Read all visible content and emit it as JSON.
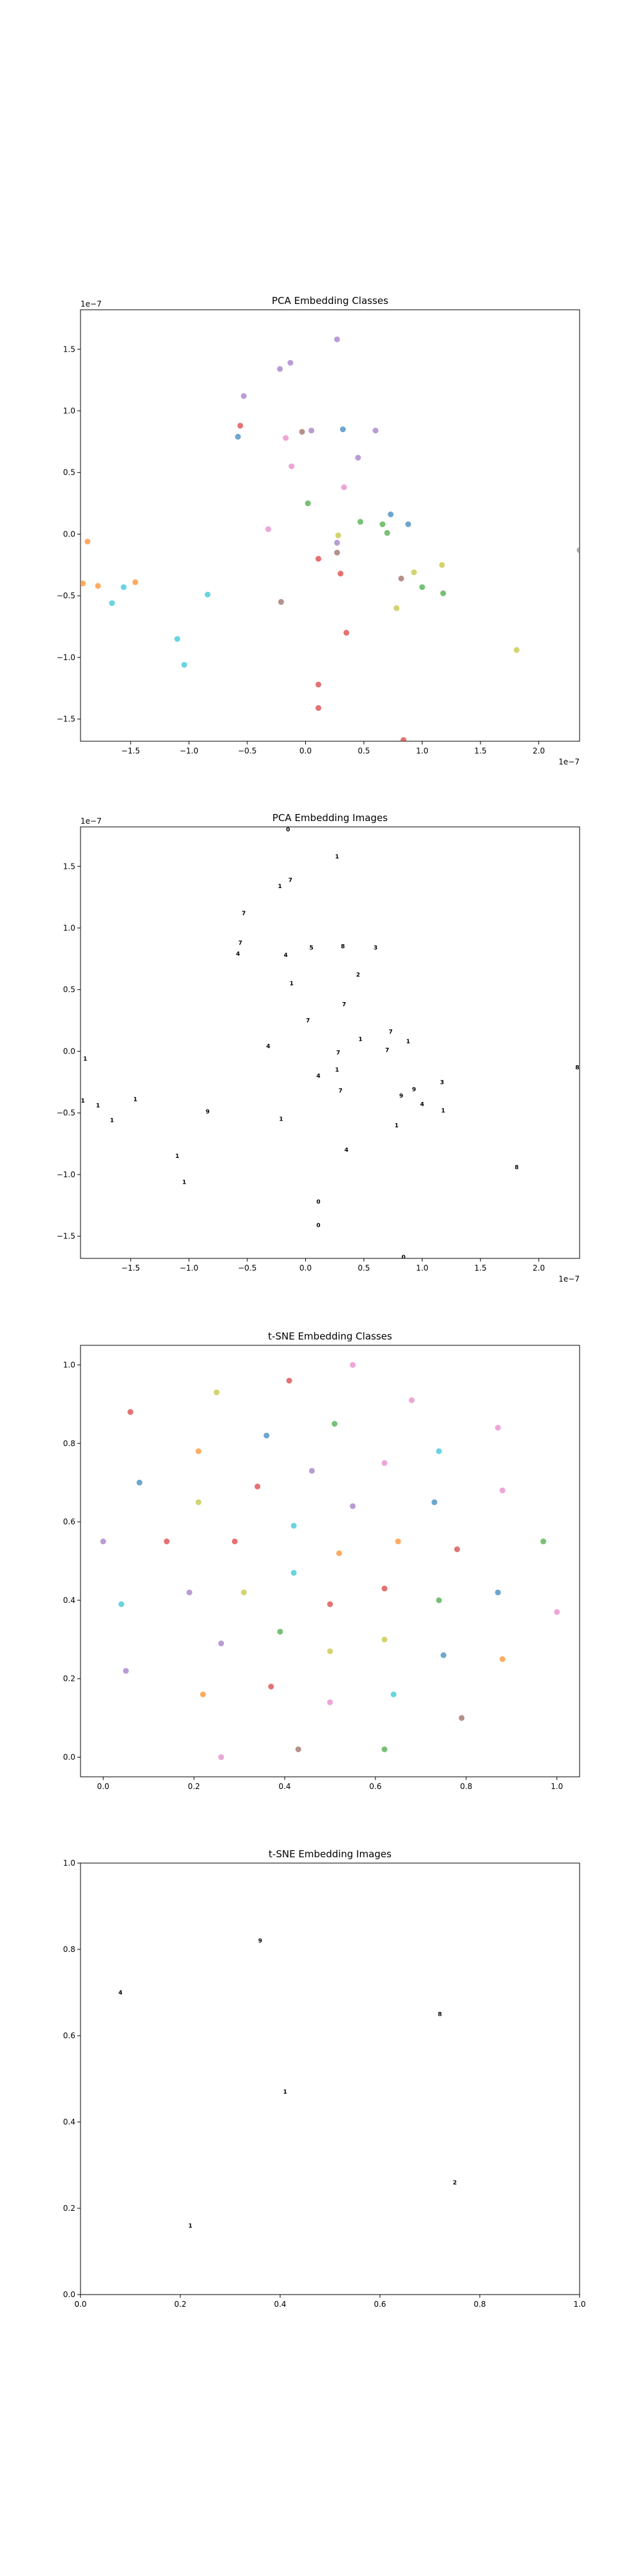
{
  "palette": [
    "#1f77b4",
    "#ff7f0e",
    "#2ca02c",
    "#d62728",
    "#9467bd",
    "#8c564b",
    "#e377c2",
    "#7f7f7f",
    "#bcbd22",
    "#17becf"
  ],
  "chart_data": [
    {
      "type": "scatter",
      "title": "PCA Embedding Classes",
      "xlim": [
        -1.93,
        2.35
      ],
      "ylim": [
        -1.68,
        1.82
      ],
      "xticks": [
        -1.5,
        -1.0,
        -0.5,
        0.0,
        0.5,
        1.0,
        1.5,
        2.0
      ],
      "yticks": [
        -1.5,
        -1.0,
        -0.5,
        0.0,
        0.5,
        1.0,
        1.5
      ],
      "xtick_labels": [
        "−1.5",
        "−1.0",
        "−0.5",
        "0.0",
        "0.5",
        "1.0",
        "1.5",
        "2.0"
      ],
      "ytick_labels": [
        "−1.5",
        "−1.0",
        "−0.5",
        "0.0",
        "0.5",
        "1.0",
        "1.5"
      ],
      "x_offset_label": "1e−7",
      "y_offset_label": "1e−7",
      "marker": "dot",
      "grid": false,
      "points": [
        {
          "x": 0.27,
          "y": 1.58,
          "c": 4
        },
        {
          "x": -0.13,
          "y": 1.39,
          "c": 4
        },
        {
          "x": -0.22,
          "y": 1.34,
          "c": 4
        },
        {
          "x": -0.53,
          "y": 1.12,
          "c": 4
        },
        {
          "x": -0.56,
          "y": 0.88,
          "c": 3
        },
        {
          "x": -0.58,
          "y": 0.79,
          "c": 0
        },
        {
          "x": -0.17,
          "y": 0.78,
          "c": 6
        },
        {
          "x": -0.03,
          "y": 0.83,
          "c": 5
        },
        {
          "x": 0.05,
          "y": 0.84,
          "c": 4
        },
        {
          "x": 0.32,
          "y": 0.85,
          "c": 0
        },
        {
          "x": 0.6,
          "y": 0.84,
          "c": 4
        },
        {
          "x": -0.12,
          "y": 0.55,
          "c": 6
        },
        {
          "x": 0.45,
          "y": 0.62,
          "c": 4
        },
        {
          "x": 0.02,
          "y": 0.25,
          "c": 2
        },
        {
          "x": 0.33,
          "y": 0.38,
          "c": 6
        },
        {
          "x": 0.47,
          "y": 0.1,
          "c": 2
        },
        {
          "x": 0.73,
          "y": 0.16,
          "c": 0
        },
        {
          "x": 0.88,
          "y": 0.08,
          "c": 0
        },
        {
          "x": 0.66,
          "y": 0.08,
          "c": 2
        },
        {
          "x": 0.7,
          "y": 0.01,
          "c": 2
        },
        {
          "x": 0.28,
          "y": -0.01,
          "c": 8
        },
        {
          "x": 0.27,
          "y": -0.07,
          "c": 4
        },
        {
          "x": -0.32,
          "y": 0.04,
          "c": 6
        },
        {
          "x": 0.11,
          "y": -0.2,
          "c": 3
        },
        {
          "x": 0.27,
          "y": -0.15,
          "c": 5
        },
        {
          "x": 0.3,
          "y": -0.32,
          "c": 3
        },
        {
          "x": 0.82,
          "y": -0.36,
          "c": 5
        },
        {
          "x": 0.93,
          "y": -0.31,
          "c": 8
        },
        {
          "x": 1.0,
          "y": -0.43,
          "c": 2
        },
        {
          "x": 1.17,
          "y": -0.25,
          "c": 8
        },
        {
          "x": 1.18,
          "y": -0.48,
          "c": 2
        },
        {
          "x": -0.21,
          "y": -0.55,
          "c": 5
        },
        {
          "x": 0.78,
          "y": -0.6,
          "c": 8
        },
        {
          "x": 0.35,
          "y": -0.8,
          "c": 3
        },
        {
          "x": 1.81,
          "y": -0.94,
          "c": 8
        },
        {
          "x": -1.04,
          "y": -1.06,
          "c": 9
        },
        {
          "x": -1.1,
          "y": -0.85,
          "c": 9
        },
        {
          "x": -0.84,
          "y": -0.49,
          "c": 9
        },
        {
          "x": -1.56,
          "y": -0.43,
          "c": 9
        },
        {
          "x": -1.66,
          "y": -0.56,
          "c": 9
        },
        {
          "x": -1.46,
          "y": -0.39,
          "c": 1
        },
        {
          "x": -1.78,
          "y": -0.42,
          "c": 1
        },
        {
          "x": -1.91,
          "y": -0.4,
          "c": 1
        },
        {
          "x": -1.87,
          "y": -0.06,
          "c": 1
        },
        {
          "x": 0.11,
          "y": -1.22,
          "c": 3
        },
        {
          "x": 0.11,
          "y": -1.41,
          "c": 3
        },
        {
          "x": 0.84,
          "y": -1.67,
          "c": 3
        },
        {
          "x": 2.35,
          "y": -0.13,
          "c": 7
        }
      ]
    },
    {
      "type": "scatter",
      "title": "PCA Embedding Images",
      "xlim": [
        -1.93,
        2.35
      ],
      "ylim": [
        -1.68,
        1.82
      ],
      "xticks": [
        -1.5,
        -1.0,
        -0.5,
        0.0,
        0.5,
        1.0,
        1.5,
        2.0
      ],
      "yticks": [
        -1.5,
        -1.0,
        -0.5,
        0.0,
        0.5,
        1.0,
        1.5
      ],
      "xtick_labels": [
        "−1.5",
        "−1.0",
        "−0.5",
        "0.0",
        "0.5",
        "1.0",
        "1.5",
        "2.0"
      ],
      "ytick_labels": [
        "−1.5",
        "−1.0",
        "−0.5",
        "0.0",
        "0.5",
        "1.0",
        "1.5"
      ],
      "x_offset_label": "1e−7",
      "y_offset_label": "1e−7",
      "marker": "digit",
      "grid": false,
      "points": [
        {
          "x": -0.15,
          "y": 1.8,
          "d": "0"
        },
        {
          "x": 0.27,
          "y": 1.58,
          "d": "1"
        },
        {
          "x": -0.13,
          "y": 1.39,
          "d": "7"
        },
        {
          "x": -0.22,
          "y": 1.34,
          "d": "1"
        },
        {
          "x": -0.53,
          "y": 1.12,
          "d": "7"
        },
        {
          "x": -0.56,
          "y": 0.88,
          "d": "7"
        },
        {
          "x": -0.58,
          "y": 0.79,
          "d": "4"
        },
        {
          "x": -0.17,
          "y": 0.78,
          "d": "4"
        },
        {
          "x": 0.05,
          "y": 0.84,
          "d": "5"
        },
        {
          "x": 0.32,
          "y": 0.85,
          "d": "8"
        },
        {
          "x": 0.6,
          "y": 0.84,
          "d": "3"
        },
        {
          "x": 0.45,
          "y": 0.62,
          "d": "2"
        },
        {
          "x": -0.12,
          "y": 0.55,
          "d": "1"
        },
        {
          "x": 0.02,
          "y": 0.25,
          "d": "7"
        },
        {
          "x": 0.33,
          "y": 0.38,
          "d": "7"
        },
        {
          "x": 0.47,
          "y": 0.1,
          "d": "1"
        },
        {
          "x": 0.73,
          "y": 0.16,
          "d": "7"
        },
        {
          "x": 0.88,
          "y": 0.08,
          "d": "1"
        },
        {
          "x": 0.7,
          "y": 0.01,
          "d": "7"
        },
        {
          "x": 0.28,
          "y": -0.01,
          "d": "7"
        },
        {
          "x": -0.32,
          "y": 0.04,
          "d": "4"
        },
        {
          "x": 0.11,
          "y": -0.2,
          "d": "4"
        },
        {
          "x": 0.27,
          "y": -0.15,
          "d": "1"
        },
        {
          "x": 0.3,
          "y": -0.32,
          "d": "7"
        },
        {
          "x": 0.82,
          "y": -0.36,
          "d": "9"
        },
        {
          "x": 0.93,
          "y": -0.31,
          "d": "9"
        },
        {
          "x": 1.0,
          "y": -0.43,
          "d": "4"
        },
        {
          "x": 1.17,
          "y": -0.25,
          "d": "3"
        },
        {
          "x": 1.18,
          "y": -0.48,
          "d": "1"
        },
        {
          "x": -0.21,
          "y": -0.55,
          "d": "1"
        },
        {
          "x": 0.78,
          "y": -0.6,
          "d": "1"
        },
        {
          "x": 0.35,
          "y": -0.8,
          "d": "4"
        },
        {
          "x": 1.81,
          "y": -0.94,
          "d": "8"
        },
        {
          "x": -1.04,
          "y": -1.06,
          "d": "1"
        },
        {
          "x": -1.1,
          "y": -0.85,
          "d": "1"
        },
        {
          "x": -0.84,
          "y": -0.49,
          "d": "9"
        },
        {
          "x": -1.46,
          "y": -0.39,
          "d": "1"
        },
        {
          "x": -1.66,
          "y": -0.56,
          "d": "1"
        },
        {
          "x": -1.78,
          "y": -0.44,
          "d": "1"
        },
        {
          "x": -1.91,
          "y": -0.4,
          "d": "1"
        },
        {
          "x": -1.89,
          "y": -0.06,
          "d": "1"
        },
        {
          "x": 0.11,
          "y": -1.22,
          "d": "0"
        },
        {
          "x": 0.11,
          "y": -1.41,
          "d": "0"
        },
        {
          "x": 0.84,
          "y": -1.67,
          "d": "0"
        },
        {
          "x": 2.33,
          "y": -0.13,
          "d": "8"
        }
      ]
    },
    {
      "type": "scatter",
      "title": "t-SNE Embedding Classes",
      "xlim": [
        -0.05,
        1.05
      ],
      "ylim": [
        -0.05,
        1.05
      ],
      "xticks": [
        0.0,
        0.2,
        0.4,
        0.6,
        0.8,
        1.0
      ],
      "yticks": [
        0.0,
        0.2,
        0.4,
        0.6,
        0.8,
        1.0
      ],
      "xtick_labels": [
        "0.0",
        "0.2",
        "0.4",
        "0.6",
        "0.8",
        "1.0"
      ],
      "ytick_labels": [
        "0.0",
        "0.2",
        "0.4",
        "0.6",
        "0.8",
        "1.0"
      ],
      "x_offset_label": "",
      "y_offset_label": "",
      "marker": "dot",
      "grid": false,
      "points": [
        {
          "x": 0.41,
          "y": 0.96,
          "c": 3
        },
        {
          "x": 0.55,
          "y": 1.0,
          "c": 6
        },
        {
          "x": 0.25,
          "y": 0.93,
          "c": 8
        },
        {
          "x": 0.68,
          "y": 0.91,
          "c": 6
        },
        {
          "x": 0.06,
          "y": 0.88,
          "c": 3
        },
        {
          "x": 0.51,
          "y": 0.85,
          "c": 2
        },
        {
          "x": 0.87,
          "y": 0.84,
          "c": 6
        },
        {
          "x": 0.36,
          "y": 0.82,
          "c": 0
        },
        {
          "x": 0.21,
          "y": 0.78,
          "c": 1
        },
        {
          "x": 0.74,
          "y": 0.78,
          "c": 9
        },
        {
          "x": 0.62,
          "y": 0.75,
          "c": 6
        },
        {
          "x": 0.46,
          "y": 0.73,
          "c": 4
        },
        {
          "x": 0.08,
          "y": 0.7,
          "c": 0
        },
        {
          "x": 0.34,
          "y": 0.69,
          "c": 3
        },
        {
          "x": 0.88,
          "y": 0.68,
          "c": 6
        },
        {
          "x": 0.21,
          "y": 0.65,
          "c": 8
        },
        {
          "x": 0.73,
          "y": 0.65,
          "c": 0
        },
        {
          "x": 0.55,
          "y": 0.64,
          "c": 4
        },
        {
          "x": 0.42,
          "y": 0.59,
          "c": 9
        },
        {
          "x": 0.0,
          "y": 0.55,
          "c": 4
        },
        {
          "x": 0.14,
          "y": 0.55,
          "c": 3
        },
        {
          "x": 0.29,
          "y": 0.55,
          "c": 3
        },
        {
          "x": 0.65,
          "y": 0.55,
          "c": 1
        },
        {
          "x": 0.97,
          "y": 0.55,
          "c": 2
        },
        {
          "x": 0.78,
          "y": 0.53,
          "c": 3
        },
        {
          "x": 0.52,
          "y": 0.52,
          "c": 1
        },
        {
          "x": 0.42,
          "y": 0.47,
          "c": 9
        },
        {
          "x": 0.62,
          "y": 0.43,
          "c": 3
        },
        {
          "x": 0.87,
          "y": 0.42,
          "c": 0
        },
        {
          "x": 0.19,
          "y": 0.42,
          "c": 4
        },
        {
          "x": 0.31,
          "y": 0.42,
          "c": 8
        },
        {
          "x": 0.04,
          "y": 0.39,
          "c": 9
        },
        {
          "x": 0.5,
          "y": 0.39,
          "c": 3
        },
        {
          "x": 0.74,
          "y": 0.4,
          "c": 2
        },
        {
          "x": 1.0,
          "y": 0.37,
          "c": 6
        },
        {
          "x": 0.39,
          "y": 0.32,
          "c": 2
        },
        {
          "x": 0.62,
          "y": 0.3,
          "c": 8
        },
        {
          "x": 0.26,
          "y": 0.29,
          "c": 4
        },
        {
          "x": 0.5,
          "y": 0.27,
          "c": 8
        },
        {
          "x": 0.75,
          "y": 0.26,
          "c": 0
        },
        {
          "x": 0.88,
          "y": 0.25,
          "c": 1
        },
        {
          "x": 0.05,
          "y": 0.22,
          "c": 4
        },
        {
          "x": 0.37,
          "y": 0.18,
          "c": 3
        },
        {
          "x": 0.22,
          "y": 0.16,
          "c": 1
        },
        {
          "x": 0.64,
          "y": 0.16,
          "c": 9
        },
        {
          "x": 0.5,
          "y": 0.14,
          "c": 6
        },
        {
          "x": 0.79,
          "y": 0.1,
          "c": 5
        },
        {
          "x": 0.43,
          "y": 0.02,
          "c": 5
        },
        {
          "x": 0.62,
          "y": 0.02,
          "c": 2
        },
        {
          "x": 0.26,
          "y": 0.0,
          "c": 6
        }
      ]
    },
    {
      "type": "scatter",
      "title": "t-SNE Embedding Images",
      "xlim": [
        0.0,
        1.0
      ],
      "ylim": [
        0.0,
        1.0
      ],
      "xticks": [
        0.0,
        0.2,
        0.4,
        0.6,
        0.8,
        1.0
      ],
      "yticks": [
        0.0,
        0.2,
        0.4,
        0.6,
        0.8,
        1.0
      ],
      "xtick_labels": [
        "0.0",
        "0.2",
        "0.4",
        "0.6",
        "0.8",
        "1.0"
      ],
      "ytick_labels": [
        "0.0",
        "0.2",
        "0.4",
        "0.6",
        "0.8",
        "1.0"
      ],
      "x_offset_label": "",
      "y_offset_label": "",
      "marker": "digit",
      "grid": false,
      "points": [
        {
          "x": 0.36,
          "y": 0.82,
          "d": "9"
        },
        {
          "x": 0.08,
          "y": 0.7,
          "d": "4"
        },
        {
          "x": 0.72,
          "y": 0.65,
          "d": "8"
        },
        {
          "x": 0.41,
          "y": 0.47,
          "d": "1"
        },
        {
          "x": 0.75,
          "y": 0.26,
          "d": "2"
        },
        {
          "x": 0.22,
          "y": 0.16,
          "d": "1"
        }
      ]
    }
  ]
}
